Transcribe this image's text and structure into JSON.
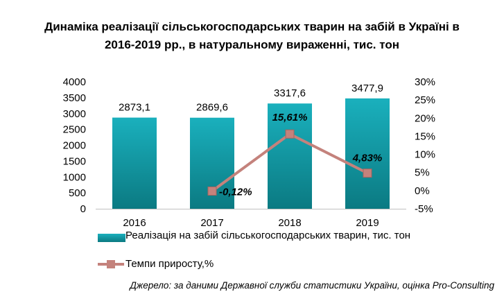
{
  "title_line1": "Динаміка реалізації сільськогосподарських тварин на забій в Україні в",
  "title_line2": "2016-2019 рр., в натуральному вираженні, тис. тон",
  "source": "Джерело: за даними Державної служби статистики України, оцінка Pro-Consulting",
  "chart_data": {
    "type": "bar",
    "categories": [
      "2016",
      "2017",
      "2018",
      "2019"
    ],
    "series": [
      {
        "name": "Реалізація на забій сільськогосподарських тварин, тис. тон",
        "type": "bar",
        "axis": "left",
        "values": [
          2873.1,
          2869.6,
          3317.6,
          3477.9
        ],
        "labels": [
          "2873,1",
          "2869,6",
          "3317,6",
          "3477,9"
        ],
        "color": "#1aa3b0"
      },
      {
        "name": "Темпи приросту,%",
        "type": "line",
        "axis": "right",
        "values": [
          null,
          -0.12,
          15.61,
          4.83
        ],
        "labels": [
          "",
          "-0,12%",
          "15,61%",
          "4,83%"
        ],
        "color": "#c4827c"
      }
    ],
    "ylim_left": [
      0,
      4000
    ],
    "yticks_left": [
      "0",
      "500",
      "1000",
      "1500",
      "2000",
      "2500",
      "3000",
      "3500",
      "4000"
    ],
    "ylim_right": [
      -5,
      30
    ],
    "yticks_right": [
      "-5%",
      "0%",
      "5%",
      "10%",
      "15%",
      "20%",
      "25%",
      "30%"
    ],
    "legend_position": "bottom",
    "grid": false
  }
}
